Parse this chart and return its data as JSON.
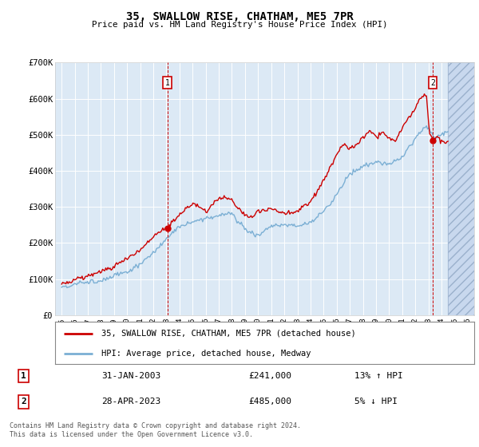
{
  "title": "35, SWALLOW RISE, CHATHAM, ME5 7PR",
  "subtitle": "Price paid vs. HM Land Registry's House Price Index (HPI)",
  "ylim": [
    0,
    700000
  ],
  "yticks": [
    0,
    100000,
    200000,
    300000,
    400000,
    500000,
    600000,
    700000
  ],
  "ytick_labels": [
    "£0",
    "£100K",
    "£200K",
    "£300K",
    "£400K",
    "£500K",
    "£600K",
    "£700K"
  ],
  "xlim_start": 1994.5,
  "xlim_end": 2026.5,
  "plot_bg_color": "#dce9f5",
  "fig_bg_color": "#ffffff",
  "grid_color": "#ffffff",
  "red_line_color": "#cc0000",
  "blue_line_color": "#7bafd4",
  "marker1_date": 2003.08,
  "marker1_price": 241000,
  "marker2_date": 2023.33,
  "marker2_price": 485000,
  "hatch_start": 2024.5,
  "legend_line1": "35, SWALLOW RISE, CHATHAM, ME5 7PR (detached house)",
  "legend_line2": "HPI: Average price, detached house, Medway",
  "note1_num": "1",
  "note1_date": "31-JAN-2003",
  "note1_price": "£241,000",
  "note1_hpi": "13% ↑ HPI",
  "note2_num": "2",
  "note2_date": "28-APR-2023",
  "note2_price": "£485,000",
  "note2_hpi": "5% ↓ HPI",
  "footer": "Contains HM Land Registry data © Crown copyright and database right 2024.\nThis data is licensed under the Open Government Licence v3.0.",
  "xtick_years": [
    1995,
    1996,
    1997,
    1998,
    1999,
    2000,
    2001,
    2002,
    2003,
    2004,
    2005,
    2006,
    2007,
    2008,
    2009,
    2010,
    2011,
    2012,
    2013,
    2014,
    2015,
    2016,
    2017,
    2018,
    2019,
    2020,
    2021,
    2022,
    2023,
    2024,
    2025,
    2026
  ]
}
